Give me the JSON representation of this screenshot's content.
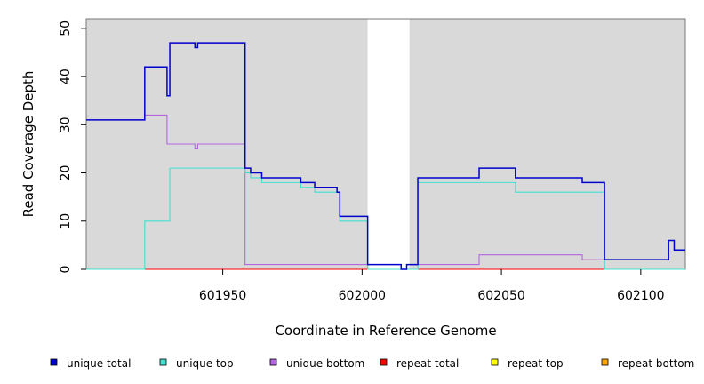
{
  "chart_data": {
    "type": "line",
    "step": true,
    "xlabel": "Coordinate in Reference Genome",
    "ylabel": "Read Coverage Depth",
    "xlim": [
      601901,
      602116
    ],
    "ylim": [
      0,
      52
    ],
    "x_ticks": [
      601950,
      602000,
      602050,
      602100
    ],
    "y_ticks": [
      0,
      10,
      20,
      30,
      40,
      50
    ],
    "shaded_regions": [
      [
        601901,
        602002
      ],
      [
        602017,
        602116
      ]
    ],
    "shaded_color": "#d9d9d9",
    "legend_position": "bottom",
    "series": [
      {
        "name": "unique total",
        "color": "#0000cd",
        "points": [
          [
            601901,
            31
          ],
          [
            601922,
            42
          ],
          [
            601930,
            36
          ],
          [
            601931,
            47
          ],
          [
            601940,
            46
          ],
          [
            601941,
            47
          ],
          [
            601958,
            21
          ],
          [
            601960,
            20
          ],
          [
            601964,
            19
          ],
          [
            601978,
            18
          ],
          [
            601983,
            17
          ],
          [
            601991,
            16
          ],
          [
            601992,
            11
          ],
          [
            602002,
            1
          ],
          [
            602014,
            0
          ],
          [
            602016,
            1
          ],
          [
            602020,
            19
          ],
          [
            602042,
            21
          ],
          [
            602055,
            19
          ],
          [
            602079,
            18
          ],
          [
            602087,
            2
          ],
          [
            602110,
            6
          ],
          [
            602112,
            4
          ],
          [
            602116,
            4
          ]
        ]
      },
      {
        "name": "unique top",
        "color": "#40e0d0",
        "points": [
          [
            601901,
            0
          ],
          [
            601922,
            10
          ],
          [
            601931,
            21
          ],
          [
            601958,
            20
          ],
          [
            601960,
            19
          ],
          [
            601964,
            18
          ],
          [
            601978,
            17
          ],
          [
            601983,
            16
          ],
          [
            601992,
            10
          ],
          [
            602002,
            0
          ],
          [
            602020,
            18
          ],
          [
            602055,
            16
          ],
          [
            602087,
            0
          ],
          [
            602116,
            0
          ]
        ]
      },
      {
        "name": "unique bottom",
        "color": "#b266e0",
        "points": [
          [
            601901,
            31
          ],
          [
            601922,
            32
          ],
          [
            601930,
            26
          ],
          [
            601940,
            25
          ],
          [
            601941,
            26
          ],
          [
            601958,
            1
          ],
          [
            602002,
            0
          ],
          [
            602016,
            1
          ],
          [
            602042,
            3
          ],
          [
            602079,
            2
          ],
          [
            602087,
            0
          ],
          [
            602116,
            0
          ]
        ]
      },
      {
        "name": "repeat total",
        "color": "#ff0000",
        "points": [
          [
            601901,
            0
          ],
          [
            602116,
            0
          ]
        ]
      },
      {
        "name": "repeat top",
        "color": "#ffff00",
        "points": [
          [
            601901,
            0
          ],
          [
            602116,
            0
          ]
        ]
      },
      {
        "name": "repeat bottom",
        "color": "#ffa500",
        "points": [
          [
            601901,
            0
          ],
          [
            602116,
            0
          ]
        ]
      }
    ]
  }
}
